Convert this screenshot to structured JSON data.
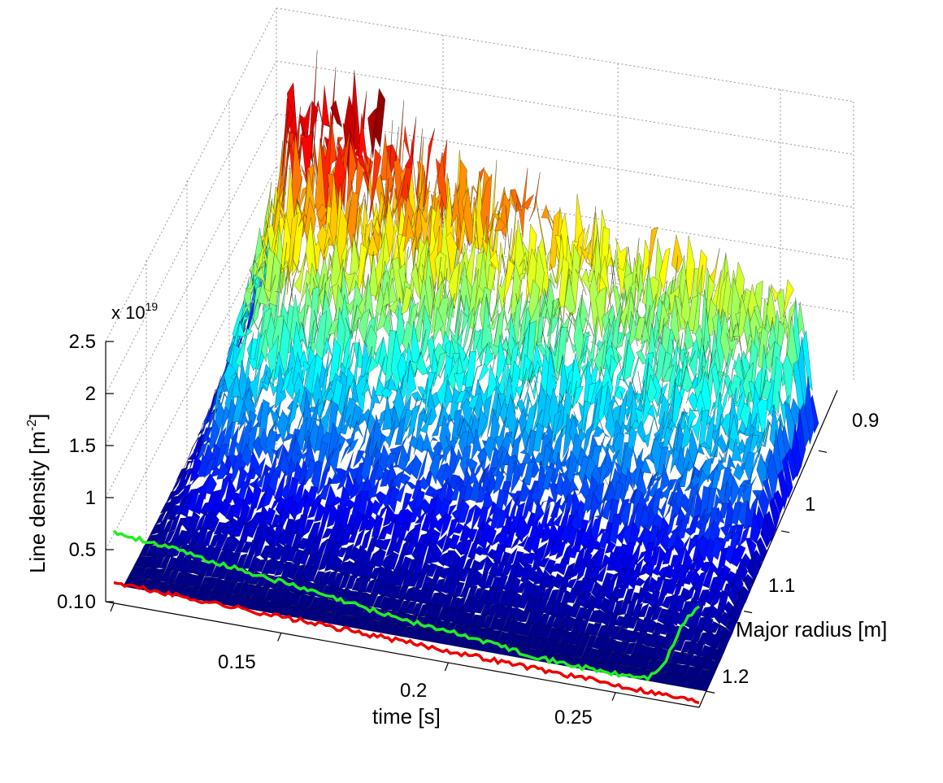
{
  "chart_data": {
    "type": "surface3d",
    "title": "",
    "xlabel": "time [s]",
    "ylabel": "Major radius [m]",
    "zlabel": "Line density [m",
    "zlabel_exp": "-2",
    "zlabel_close": "]",
    "z_multiplier": "x 10",
    "z_multiplier_exp": "19",
    "xlim": [
      0.1,
      0.275
    ],
    "ylim": [
      0.85,
      1.22
    ],
    "zlim": [
      0,
      2.5
    ],
    "x_ticks": [
      0.1,
      0.15,
      0.2,
      0.25
    ],
    "x_tick_labels": [
      "0.1",
      "0.15",
      "0.2",
      "0.25"
    ],
    "y_ticks": [
      0.9,
      1.0,
      1.1,
      1.2
    ],
    "y_tick_labels": [
      "0.9",
      "1",
      "1.1",
      "1.2"
    ],
    "z_ticks": [
      0,
      0.5,
      1,
      1.5,
      2,
      2.5
    ],
    "z_tick_labels": [
      "0",
      "0.5",
      "1",
      "1.5",
      "2",
      "2.5"
    ],
    "grid": true,
    "colormap": "jet",
    "surface_profile": {
      "time": [
        0.1,
        0.105,
        0.11,
        0.12,
        0.14,
        0.16,
        0.18,
        0.2,
        0.22,
        0.24,
        0.26,
        0.27,
        0.275
      ],
      "peak_density": [
        0.3,
        1.2,
        2.2,
        2.3,
        2.1,
        1.9,
        1.75,
        1.6,
        1.5,
        1.45,
        1.4,
        1.3,
        0.3
      ],
      "peak_radius": 0.9,
      "edge_radius": 1.2
    },
    "projections": [
      {
        "name": "green-projection-line",
        "color": "#22ee22",
        "time": [
          0.1,
          0.11,
          0.13,
          0.15,
          0.17,
          0.19,
          0.21,
          0.23,
          0.25,
          0.26,
          0.265,
          0.27,
          0.275
        ],
        "level": [
          0.62,
          0.6,
          0.52,
          0.45,
          0.37,
          0.3,
          0.25,
          0.18,
          0.16,
          0.18,
          0.35,
          0.7,
          0.9
        ]
      },
      {
        "name": "red-projection-line",
        "color": "#ee0000",
        "time": [
          0.1,
          0.275
        ],
        "level": [
          0.18,
          0.05
        ]
      }
    ]
  }
}
